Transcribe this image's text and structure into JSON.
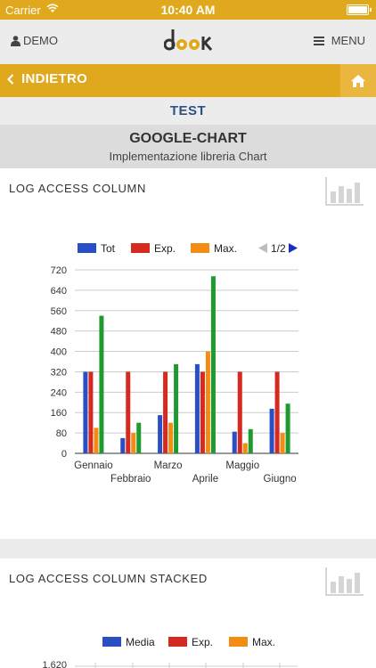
{
  "status_bar": {
    "carrier": "Carrier",
    "time": "10:40 AM"
  },
  "header": {
    "demo_label": "DEMO",
    "menu_label": "MENU",
    "logo_text": "dook"
  },
  "nav": {
    "back_label": "INDIETRO"
  },
  "section": {
    "label": "TEST"
  },
  "page": {
    "title": "GOOGLE-CHART",
    "subtitle": "Implementazione libreria Chart"
  },
  "colors": {
    "accent": "#e0a81c",
    "title_blue": "#2f5185",
    "tot": "#2a4fc4",
    "exp": "#d42a1f",
    "max": "#f48b13",
    "avg": "#1f9a2f"
  },
  "cards": [
    {
      "title": "LOG ACCESS COLUMN",
      "icon": "bar-chart-icon",
      "legend": {
        "entries": [
          "Tot",
          "Exp.",
          "Max."
        ],
        "page": "1/2"
      }
    },
    {
      "title": "LOG ACCESS COLUMN STACKED",
      "icon": "bar-chart-icon",
      "legend": {
        "entries": [
          "Media",
          "Exp.",
          "Max."
        ]
      },
      "top_tick": "1.620"
    }
  ],
  "chart_data": [
    {
      "type": "bar",
      "title": "LOG ACCESS COLUMN",
      "categories": [
        "Gennaio",
        "Febbraio",
        "Marzo",
        "Aprile",
        "Maggio",
        "Giugno"
      ],
      "yticks": [
        0,
        80,
        160,
        240,
        320,
        400,
        480,
        560,
        640,
        720
      ],
      "ylim": [
        0,
        720
      ],
      "series": [
        {
          "name": "Tot",
          "color": "#2a4fc4",
          "values": [
            320,
            60,
            150,
            350,
            85,
            175
          ]
        },
        {
          "name": "Exp.",
          "color": "#d42a1f",
          "values": [
            320,
            320,
            320,
            320,
            320,
            320
          ]
        },
        {
          "name": "Max.",
          "color": "#f48b13",
          "values": [
            100,
            80,
            120,
            400,
            40,
            80
          ]
        },
        {
          "color": "#1f9a2f",
          "values": [
            540,
            120,
            350,
            695,
            95,
            195
          ]
        }
      ],
      "legend_position": "top",
      "grid": true
    }
  ]
}
